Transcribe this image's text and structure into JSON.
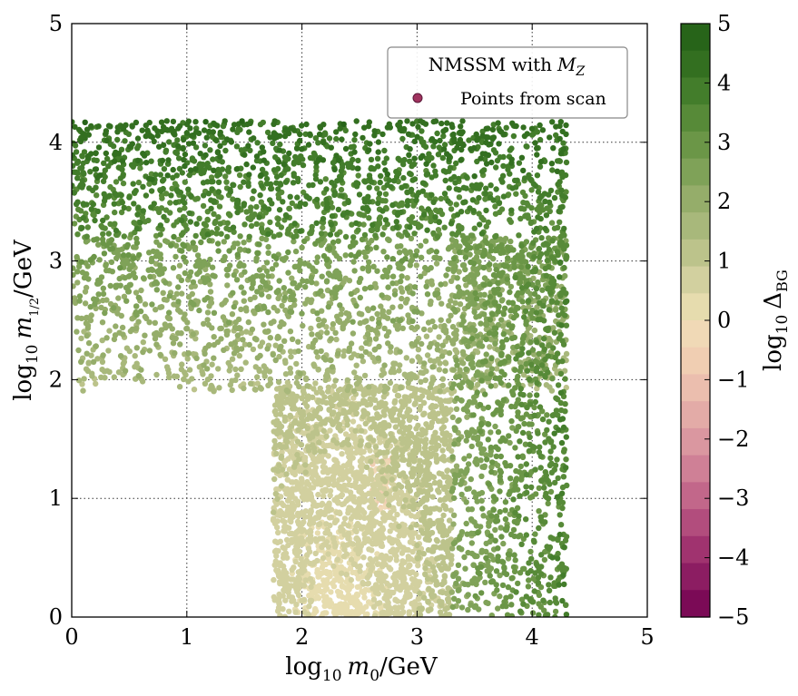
{
  "chart_data": {
    "type": "scatter",
    "x_range": [
      0,
      5
    ],
    "y_range": [
      0,
      5
    ],
    "x_ticks": [
      "0",
      "1",
      "2",
      "3",
      "4",
      "5"
    ],
    "y_ticks": [
      "0",
      "1",
      "2",
      "3",
      "4",
      "5"
    ],
    "xlabel": {
      "prefix": "log",
      "sub": "10",
      "var": "m",
      "var_sub": "0",
      "unit": "/GeV"
    },
    "ylabel": {
      "prefix": "log",
      "sub": "10",
      "var": "m",
      "var_sub": "1/2",
      "unit": "/GeV"
    },
    "grid": true,
    "legend": {
      "title": "NMSSM with M_Z",
      "title_text": "NMSSM with",
      "title_symbol": "M",
      "title_symbol_sub": "Z",
      "entry_label": "Points from scan",
      "entry_marker_color": "#a0335f",
      "placement": "top-right"
    },
    "colorbar": {
      "label_prefix": "log",
      "label_sub": "10",
      "label_symbol": "Δ",
      "label_symbol_sub": "BG",
      "range": [
        -5,
        5
      ],
      "ticks": [
        "5",
        "4",
        "3",
        "2",
        "1",
        "0",
        "−1",
        "−2",
        "−3",
        "−4",
        "−5"
      ],
      "colors_top_to_bottom": [
        "#276419",
        "#336f20",
        "#437d2b",
        "#578a38",
        "#6b9647",
        "#7fa258",
        "#95ad6a",
        "#a8b87b",
        "#bcc38b",
        "#d2d09f",
        "#e6dcae",
        "#f0d9b6",
        "#f0ceb2",
        "#ebbeae",
        "#e3aba7",
        "#da97a0",
        "#cf8096",
        "#c2678a",
        "#b24d7d",
        "#a0336f",
        "#8c1d62",
        "#7b0a56"
      ]
    },
    "series": [
      {
        "name": "Points from scan",
        "description_regions": [
          {
            "region": "high-m1/2 band",
            "x": [
              0,
              4.3
            ],
            "y": [
              3.2,
              4.18
            ],
            "log10_delta_bg": [
              3,
              4.6
            ]
          },
          {
            "region": "mid band",
            "x": [
              0,
              4.3
            ],
            "y": [
              1.9,
              3.2
            ],
            "log10_delta_bg": [
              1.2,
              3
            ]
          },
          {
            "region": "central low-tuning region",
            "x": [
              1.75,
              3.3
            ],
            "y": [
              0,
              1.95
            ],
            "log10_delta_bg": [
              0,
              1.2
            ]
          },
          {
            "region": "minimum tuning cluster",
            "x": [
              2.6,
              2.8
            ],
            "y": [
              0.9,
              1.35
            ],
            "log10_delta_bg": [
              -0.8,
              -0.3
            ]
          },
          {
            "region": "right edge",
            "x": [
              3.3,
              4.3
            ],
            "y": [
              0,
              3.2
            ],
            "log10_delta_bg": [
              2,
              3.8
            ]
          }
        ]
      }
    ]
  }
}
